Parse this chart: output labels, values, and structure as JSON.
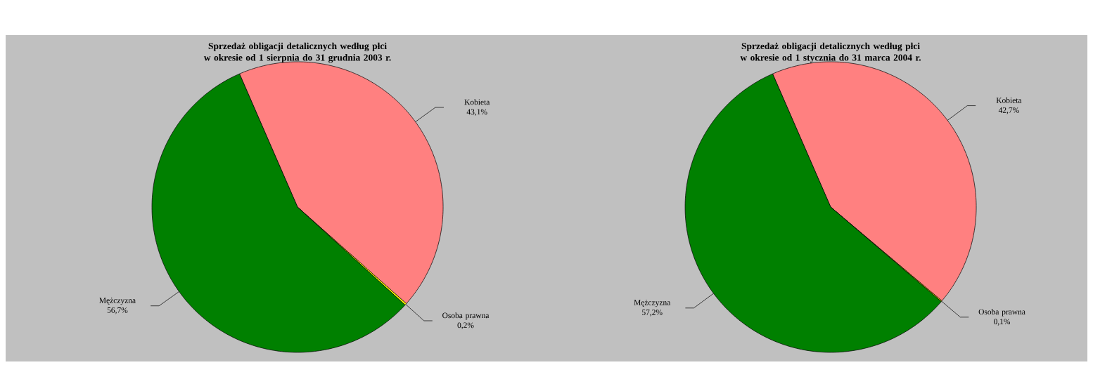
{
  "chart_data": [
    {
      "type": "pie",
      "title": "Sprzedaż obligacji detalicznych według płci\nw okresie od 1 sierpnia do 31 grudnia 2003 r.",
      "categories": [
        "Kobieta",
        "Osoba prawna",
        "Mężczyzna"
      ],
      "values": [
        43.1,
        0.2,
        56.7
      ],
      "value_labels": [
        "43,1%",
        "0,2%",
        "56,7%"
      ],
      "colors": [
        "#ff8080",
        "#ffff00",
        "#008000"
      ]
    },
    {
      "type": "pie",
      "title": "Sprzedaż obligacji detalicznych według płci\nw okresie od 1 stycznia do 31 marca 2004 r.",
      "categories": [
        "Kobieta",
        "Osoba prawna",
        "Mężczyzna"
      ],
      "values": [
        42.7,
        0.1,
        57.2
      ],
      "value_labels": [
        "42,7%",
        "0,1%",
        "57,2%"
      ],
      "colors": [
        "#ff8080",
        "#ffff00",
        "#008000"
      ]
    }
  ]
}
